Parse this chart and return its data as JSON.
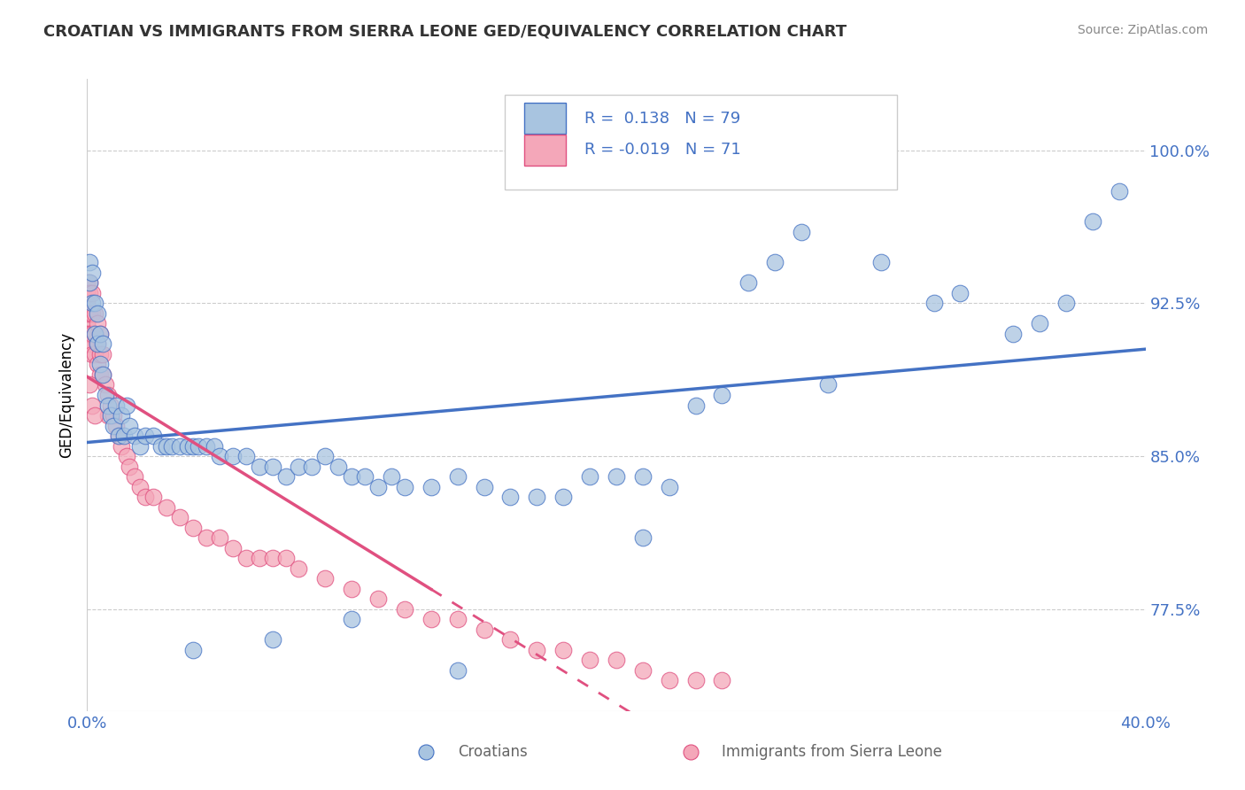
{
  "title": "CROATIAN VS IMMIGRANTS FROM SIERRA LEONE GED/EQUIVALENCY CORRELATION CHART",
  "source": "Source: ZipAtlas.com",
  "xlabel_croatians": "Croatians",
  "xlabel_sierraleone": "Immigrants from Sierra Leone",
  "ylabel": "GED/Equivalency",
  "xmin": 0.0,
  "xmax": 0.4,
  "ymin": 0.725,
  "ymax": 1.035,
  "yticks": [
    0.775,
    0.85,
    0.925,
    1.0
  ],
  "ytick_labels": [
    "77.5%",
    "85.0%",
    "92.5%",
    "100.0%"
  ],
  "xtick_labels": [
    "0.0%",
    "40.0%"
  ],
  "R_croatian": 0.138,
  "N_croatian": 79,
  "R_sierraleone": -0.019,
  "N_sierraleone": 71,
  "color_croatian": "#a8c4e0",
  "color_sierraleone": "#f4a7b9",
  "line_color_croatian": "#4472c4",
  "line_color_sierraleone": "#e05080",
  "line_color_sierraleone_dashed": "#e896b0",
  "background_color": "#ffffff",
  "croatian_x": [
    0.001,
    0.001,
    0.002,
    0.002,
    0.003,
    0.003,
    0.004,
    0.004,
    0.005,
    0.005,
    0.006,
    0.006,
    0.007,
    0.008,
    0.009,
    0.01,
    0.011,
    0.012,
    0.013,
    0.014,
    0.015,
    0.016,
    0.018,
    0.02,
    0.022,
    0.025,
    0.028,
    0.03,
    0.032,
    0.035,
    0.038,
    0.04,
    0.042,
    0.045,
    0.048,
    0.05,
    0.055,
    0.06,
    0.065,
    0.07,
    0.075,
    0.08,
    0.085,
    0.09,
    0.095,
    0.1,
    0.105,
    0.11,
    0.115,
    0.12,
    0.13,
    0.14,
    0.15,
    0.16,
    0.17,
    0.18,
    0.19,
    0.2,
    0.21,
    0.22,
    0.23,
    0.24,
    0.25,
    0.26,
    0.27,
    0.28,
    0.3,
    0.32,
    0.33,
    0.35,
    0.36,
    0.37,
    0.38,
    0.39,
    0.04,
    0.07,
    0.1,
    0.14,
    0.21
  ],
  "croatian_y": [
    0.935,
    0.945,
    0.925,
    0.94,
    0.91,
    0.925,
    0.905,
    0.92,
    0.895,
    0.91,
    0.89,
    0.905,
    0.88,
    0.875,
    0.87,
    0.865,
    0.875,
    0.86,
    0.87,
    0.86,
    0.875,
    0.865,
    0.86,
    0.855,
    0.86,
    0.86,
    0.855,
    0.855,
    0.855,
    0.855,
    0.855,
    0.855,
    0.855,
    0.855,
    0.855,
    0.85,
    0.85,
    0.85,
    0.845,
    0.845,
    0.84,
    0.845,
    0.845,
    0.85,
    0.845,
    0.84,
    0.84,
    0.835,
    0.84,
    0.835,
    0.835,
    0.84,
    0.835,
    0.83,
    0.83,
    0.83,
    0.84,
    0.84,
    0.84,
    0.835,
    0.875,
    0.88,
    0.935,
    0.945,
    0.96,
    0.885,
    0.945,
    0.925,
    0.93,
    0.91,
    0.915,
    0.925,
    0.965,
    0.98,
    0.755,
    0.76,
    0.77,
    0.745,
    0.81
  ],
  "sierraleone_x": [
    0.0,
    0.0,
    0.0,
    0.0,
    0.0,
    0.0,
    0.0,
    0.001,
    0.001,
    0.001,
    0.001,
    0.001,
    0.002,
    0.002,
    0.002,
    0.002,
    0.003,
    0.003,
    0.003,
    0.004,
    0.004,
    0.004,
    0.005,
    0.005,
    0.005,
    0.006,
    0.006,
    0.007,
    0.008,
    0.008,
    0.009,
    0.01,
    0.011,
    0.012,
    0.013,
    0.015,
    0.016,
    0.018,
    0.02,
    0.022,
    0.025,
    0.03,
    0.035,
    0.04,
    0.045,
    0.05,
    0.055,
    0.06,
    0.065,
    0.07,
    0.075,
    0.08,
    0.09,
    0.1,
    0.11,
    0.12,
    0.13,
    0.14,
    0.15,
    0.16,
    0.17,
    0.18,
    0.19,
    0.2,
    0.21,
    0.22,
    0.23,
    0.24,
    0.001,
    0.002,
    0.003
  ],
  "sierraleone_y": [
    0.935,
    0.93,
    0.925,
    0.92,
    0.915,
    0.91,
    0.905,
    0.935,
    0.93,
    0.92,
    0.91,
    0.905,
    0.93,
    0.92,
    0.91,
    0.9,
    0.92,
    0.91,
    0.9,
    0.915,
    0.905,
    0.895,
    0.91,
    0.9,
    0.89,
    0.9,
    0.89,
    0.885,
    0.88,
    0.87,
    0.875,
    0.87,
    0.865,
    0.86,
    0.855,
    0.85,
    0.845,
    0.84,
    0.835,
    0.83,
    0.83,
    0.825,
    0.82,
    0.815,
    0.81,
    0.81,
    0.805,
    0.8,
    0.8,
    0.8,
    0.8,
    0.795,
    0.79,
    0.785,
    0.78,
    0.775,
    0.77,
    0.77,
    0.765,
    0.76,
    0.755,
    0.755,
    0.75,
    0.75,
    0.745,
    0.74,
    0.74,
    0.74,
    0.885,
    0.875,
    0.87
  ]
}
